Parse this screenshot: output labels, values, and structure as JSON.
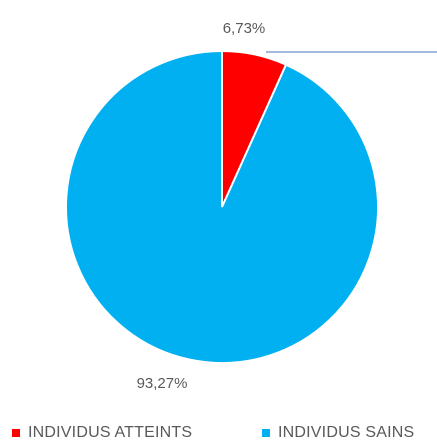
{
  "chart_data": {
    "type": "pie",
    "slices": [
      {
        "name": "INDIVIDUS ATTEINTS",
        "value": 6.73,
        "label": "6,73%",
        "color": "#FF0000"
      },
      {
        "name": "INDIVIDUS SAINS",
        "value": 93.27,
        "label": "93,27%",
        "color": "#00B0F0"
      }
    ],
    "legend_position": "bottom",
    "leader_line_color": "#4472C4"
  }
}
